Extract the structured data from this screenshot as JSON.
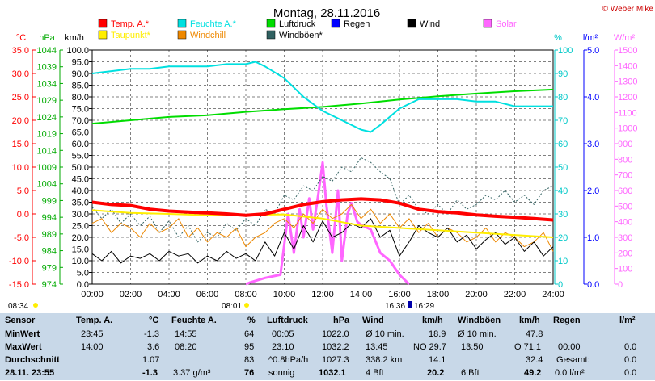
{
  "title": "Montag, 28.11.2016",
  "copyright": "© Weber Mike",
  "chart_data": {
    "type": "line",
    "x_ticks": [
      "00:00",
      "02:00",
      "04:00",
      "06:00",
      "08:00",
      "10:00",
      "12:00",
      "14:00",
      "16:00",
      "18:00",
      "20:00",
      "22:00",
      "24:00"
    ],
    "xlim_hours": [
      0,
      24
    ],
    "grid": true,
    "axes": {
      "temp_c": {
        "label": "°C",
        "range": [
          -15,
          35
        ],
        "ticks": [
          "35.0",
          "30.0",
          "25.0",
          "20.0",
          "15.0",
          "10.0",
          "5.0",
          "0.0",
          "-5.0",
          "-10.0",
          "-15.0"
        ],
        "color": "#ff0000"
      },
      "pressure_hpa": {
        "label": "hPa",
        "range": [
          974,
          1044
        ],
        "ticks": [
          "1044",
          "1039",
          "1034",
          "1029",
          "1024",
          "1019",
          "1014",
          "1009",
          "1004",
          "999",
          "994",
          "989",
          "984",
          "979",
          "974"
        ],
        "color": "#00aa00"
      },
      "wind_kmh": {
        "label": "km/h",
        "range": [
          0,
          100
        ],
        "ticks": [
          "100.0",
          "95.0",
          "90.0",
          "85.0",
          "80.0",
          "75.0",
          "70.0",
          "65.0",
          "60.0",
          "55.0",
          "50.0",
          "45.0",
          "40.0",
          "35.0",
          "30.0",
          "25.0",
          "20.0",
          "15.0",
          "10.0",
          "5.0",
          "0.0"
        ],
        "color": "#000000"
      },
      "humidity_pct": {
        "label": "%",
        "range": [
          0,
          100
        ],
        "ticks": [
          "100",
          "90",
          "80",
          "70",
          "60",
          "50",
          "40",
          "30",
          "20",
          "10",
          "0"
        ],
        "color": "#00c8c8"
      },
      "rain_lm2": {
        "label": "l/m²",
        "range": [
          0,
          5
        ],
        "ticks": [
          "5.0",
          "4.0",
          "3.0",
          "2.0",
          "1.0",
          "0.0"
        ],
        "color": "#0000ff"
      },
      "solar_wm2": {
        "label": "W/m²",
        "range": [
          0,
          1500
        ],
        "ticks": [
          "1500",
          "1400",
          "1300",
          "1200",
          "1100",
          "1000",
          "900",
          "800",
          "700",
          "600",
          "500",
          "400",
          "300",
          "200",
          "100",
          "0"
        ],
        "color": "#ff66ff"
      }
    },
    "legend": [
      {
        "name": "Temp. A.*",
        "color": "#ff0000"
      },
      {
        "name": "Feuchte A.*",
        "color": "#00e0e0"
      },
      {
        "name": "Luftdruck",
        "color": "#00dd00"
      },
      {
        "name": "Regen",
        "color": "#0000ff"
      },
      {
        "name": "Wind",
        "color": "#000000"
      },
      {
        "name": "Solar",
        "color": "#ff66ff"
      },
      {
        "name": "Taupunkt*",
        "color": "#ffee00"
      },
      {
        "name": "Windchill",
        "color": "#ee8800"
      },
      {
        "name": "Windböen*",
        "color": "#306060"
      }
    ],
    "series": [
      {
        "name": "Temp. A.*",
        "axis": "temp_c",
        "width": 4,
        "color": "#ff0000",
        "x": [
          0,
          1,
          2,
          3,
          4,
          5,
          6,
          7,
          8,
          9,
          10,
          11,
          12,
          13,
          14,
          15,
          16,
          17,
          18,
          19,
          20,
          21,
          22,
          23,
          24
        ],
        "values": [
          2.5,
          2.0,
          1.8,
          1.0,
          0.6,
          0.4,
          0.2,
          0.0,
          -0.3,
          0.0,
          1.0,
          2.0,
          2.6,
          3.0,
          3.2,
          3.0,
          2.3,
          1.0,
          0.5,
          0.2,
          -0.2,
          -0.5,
          -0.7,
          -1.0,
          -1.3
        ]
      },
      {
        "name": "Taupunkt*",
        "axis": "temp_c",
        "width": 2,
        "color": "#ffee00",
        "x": [
          0,
          2,
          4,
          6,
          8,
          10,
          12,
          14,
          16,
          18,
          20,
          22,
          24
        ],
        "values": [
          0.8,
          0.2,
          0.0,
          -0.3,
          -0.2,
          -0.1,
          -1.0,
          -2.5,
          -3.0,
          -3.5,
          -4.0,
          -4.5,
          -5.0
        ]
      },
      {
        "name": "Luftdruck",
        "axis": "pressure_hpa",
        "width": 2,
        "color": "#00dd00",
        "x": [
          0,
          2,
          4,
          6,
          8,
          10,
          12,
          14,
          16,
          18,
          20,
          22,
          24
        ],
        "values": [
          1022.0,
          1023.0,
          1024.0,
          1024.5,
          1025.5,
          1026.3,
          1027.0,
          1028.0,
          1029.2,
          1030.2,
          1031.0,
          1031.7,
          1032.2
        ]
      },
      {
        "name": "Feuchte A.*",
        "axis": "humidity_pct",
        "width": 2,
        "color": "#00e0e0",
        "x": [
          0,
          1,
          2,
          3,
          4,
          5,
          6,
          7,
          8,
          8.5,
          9,
          10,
          11,
          12,
          13,
          14,
          14.5,
          15,
          16,
          17,
          18,
          19,
          20,
          21,
          22,
          23,
          24
        ],
        "values": [
          90,
          91,
          92,
          92,
          93,
          93,
          93,
          94,
          94,
          95,
          93,
          88,
          80,
          74,
          70,
          66,
          65,
          68,
          75,
          79,
          79,
          79,
          78,
          78,
          76,
          76,
          76
        ]
      },
      {
        "name": "Wind",
        "axis": "wind_kmh",
        "width": 1,
        "color": "#000000",
        "x": [
          0,
          0.5,
          1,
          1.5,
          2,
          2.5,
          3,
          3.5,
          4,
          4.5,
          5,
          5.5,
          6,
          6.5,
          7,
          7.5,
          8,
          8.5,
          9,
          9.5,
          10,
          10.5,
          11,
          11.5,
          12,
          12.5,
          13,
          13.5,
          14,
          14.5,
          15,
          15.5,
          16,
          16.5,
          17,
          17.5,
          18,
          18.5,
          19,
          19.5,
          20,
          20.5,
          21,
          21.5,
          22,
          22.5,
          23,
          23.5,
          24
        ],
        "values": [
          13,
          10,
          14,
          9,
          12,
          11,
          13,
          10,
          14,
          12,
          13,
          9,
          12,
          10,
          14,
          11,
          13,
          10,
          18,
          12,
          22,
          15,
          25,
          18,
          27,
          20,
          22,
          26,
          24,
          28,
          20,
          23,
          12,
          18,
          25,
          22,
          20,
          24,
          18,
          21,
          15,
          19,
          22,
          17,
          20,
          14,
          18,
          12,
          16
        ]
      },
      {
        "name": "Windchill",
        "axis": "temp_c",
        "width": 1,
        "color": "#ee8800",
        "x": [
          0,
          0.5,
          1,
          1.5,
          2,
          2.5,
          3,
          3.5,
          4,
          4.5,
          5,
          5.5,
          6,
          6.5,
          7,
          7.5,
          8,
          8.5,
          9,
          9.5,
          10,
          10.5,
          11,
          11.5,
          12,
          12.5,
          13,
          13.5,
          14,
          14.5,
          15,
          15.5,
          16,
          16.5,
          17,
          17.5,
          18,
          18.5,
          19,
          19.5,
          20,
          20.5,
          21,
          21.5,
          22,
          22.5,
          23,
          23.5,
          24
        ],
        "values": [
          -2,
          -1,
          -4,
          -2,
          -3,
          -5,
          -2,
          -4,
          -3,
          -1,
          -5,
          -3,
          -6,
          -4,
          -5,
          -3,
          -7,
          -5,
          -4,
          -2,
          -1,
          -3,
          0,
          -2,
          1,
          -1,
          0,
          2,
          -1,
          1,
          -2,
          0,
          -3,
          -1,
          -4,
          -2,
          -5,
          -3,
          -4,
          -6,
          -5,
          -3,
          -6,
          -4,
          -5,
          -7,
          -6,
          -4,
          -8
        ]
      },
      {
        "name": "Windböen*",
        "axis": "wind_kmh",
        "width": 1,
        "color": "#306060",
        "x": [
          0,
          0.5,
          1,
          1.5,
          2,
          2.5,
          3,
          3.5,
          4,
          4.5,
          5,
          5.5,
          6,
          6.5,
          7,
          7.5,
          8,
          8.5,
          9,
          9.5,
          10,
          10.5,
          11,
          11.5,
          12,
          12.5,
          13,
          13.5,
          14,
          14.5,
          15,
          15.5,
          16,
          16.5,
          17,
          17.5,
          18,
          18.5,
          19,
          19.5,
          20,
          20.5,
          21,
          21.5,
          22,
          22.5,
          23,
          23.5,
          24
        ],
        "values": [
          33,
          28,
          32,
          26,
          30,
          25,
          29,
          22,
          27,
          20,
          25,
          18,
          22,
          20,
          26,
          23,
          28,
          25,
          32,
          30,
          38,
          36,
          42,
          40,
          46,
          44,
          50,
          48,
          54,
          52,
          48,
          45,
          34,
          38,
          32,
          30,
          34,
          30,
          36,
          32,
          34,
          38,
          36,
          40,
          35,
          38,
          34,
          40,
          42
        ]
      },
      {
        "name": "Solar",
        "axis": "solar_wm2",
        "width": 3,
        "color": "#ff66ff",
        "x": [
          8.0,
          8.2,
          9.0,
          9.8,
          10.2,
          10.5,
          10.8,
          11.0,
          11.3,
          11.5,
          11.8,
          12.0,
          12.2,
          12.5,
          12.8,
          13.0,
          13.3,
          13.5,
          13.8,
          14.0,
          14.5,
          15.0,
          15.5,
          16.0,
          16.5
        ],
        "values": [
          0,
          10,
          40,
          60,
          450,
          200,
          480,
          300,
          550,
          350,
          600,
          780,
          500,
          200,
          600,
          150,
          450,
          520,
          400,
          380,
          350,
          200,
          150,
          60,
          0
        ]
      }
    ]
  },
  "markers": {
    "sunrise_left": "08:34",
    "sunrise": "08:01",
    "sunset": "16:36",
    "sunset2": "16:29"
  },
  "table": {
    "headers": {
      "sensor": "Sensor",
      "temp": "Temp. A.",
      "temp_unit": "°C",
      "hum": "Feuchte A.",
      "hum_unit": "%",
      "press": "Luftdruck",
      "press_unit": "hPa",
      "wind": "Wind",
      "wind_unit": "km/h",
      "gust": "Windböen",
      "gust_unit": "km/h",
      "rain": "Regen",
      "rain_unit": "l/m²"
    },
    "min": {
      "label": "MinWert",
      "temp_time": "23:45",
      "temp": "-1.3",
      "hum_time": "14:55",
      "hum": "64",
      "press_time": "00:05",
      "press": "1022.0",
      "wind_label": "Ø 10 min.",
      "wind": "18.9",
      "gust_label": "Ø 10 min.",
      "gust": "47.8"
    },
    "max": {
      "label": "MaxWert",
      "temp_time": "14:00",
      "temp": "3.6",
      "hum_time": "08:20",
      "hum": "95",
      "press_time": "23:10",
      "press": "1032.2",
      "wind_time": "13:45",
      "wind_dir": "NO 29.7",
      "gust_time": "13:50",
      "gust_dir": "O 71.1",
      "rain_time": "00:00",
      "rain": "0.0"
    },
    "avg": {
      "label": "Durchschnitt",
      "temp": "1.07",
      "hum": "83",
      "press_trend": "^0.8hPa/h",
      "press": "1027.3",
      "wind_dist": "338.2 km",
      "wind": "14.1",
      "gust": "32.4",
      "rain_label": "Gesamt:",
      "rain": "0.0"
    },
    "current": {
      "label": "28.11. 23:55",
      "temp": "-1.3",
      "hum_abs": "3.37 g/m³",
      "hum": "76",
      "press_desc": "sonnig",
      "press": "1032.1",
      "wind_bft": "4 Bft",
      "wind": "20.2",
      "gust_bft": "6 Bft",
      "gust": "49.2",
      "rain_rate": "0.0 l/m²",
      "rain": "0.0"
    }
  }
}
